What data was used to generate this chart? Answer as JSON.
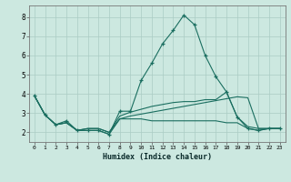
{
  "xlabel": "Humidex (Indice chaleur)",
  "background_color": "#cce8e0",
  "grid_color": "#aaccc4",
  "line_color": "#1a6e60",
  "x_ticks": [
    0,
    1,
    2,
    3,
    4,
    5,
    6,
    7,
    8,
    9,
    10,
    11,
    12,
    13,
    14,
    15,
    16,
    17,
    18,
    19,
    20,
    21,
    22,
    23
  ],
  "ylim": [
    1.5,
    8.6
  ],
  "xlim": [
    -0.5,
    23.5
  ],
  "yticks": [
    2,
    3,
    4,
    5,
    6,
    7,
    8
  ],
  "series": [
    {
      "x": [
        0,
        1,
        2,
        3,
        4,
        5,
        6,
        7,
        8,
        9,
        10,
        11,
        12,
        13,
        14,
        15,
        16,
        17,
        18,
        19,
        20,
        21,
        22,
        23
      ],
      "y": [
        3.9,
        2.9,
        2.4,
        2.6,
        2.1,
        2.1,
        2.1,
        1.9,
        3.1,
        3.1,
        4.7,
        5.6,
        6.6,
        7.3,
        8.1,
        7.6,
        6.0,
        4.9,
        4.1,
        2.8,
        2.2,
        2.1,
        2.2,
        2.2
      ],
      "marker": "+"
    },
    {
      "x": [
        0,
        1,
        2,
        3,
        4,
        5,
        6,
        7,
        8,
        9,
        10,
        11,
        12,
        13,
        14,
        15,
        16,
        17,
        18,
        19,
        20,
        21,
        22,
        23
      ],
      "y": [
        3.9,
        2.9,
        2.4,
        2.5,
        2.1,
        2.1,
        2.1,
        1.9,
        2.7,
        2.7,
        2.7,
        2.6,
        2.6,
        2.6,
        2.6,
        2.6,
        2.6,
        2.6,
        2.5,
        2.5,
        2.2,
        2.1,
        2.2,
        2.2
      ],
      "marker": null
    },
    {
      "x": [
        0,
        1,
        2,
        3,
        4,
        5,
        6,
        7,
        8,
        9,
        10,
        11,
        12,
        13,
        14,
        15,
        16,
        17,
        18,
        19,
        20,
        21,
        22,
        23
      ],
      "y": [
        3.9,
        2.9,
        2.4,
        2.5,
        2.1,
        2.2,
        2.2,
        2.0,
        2.7,
        2.85,
        2.95,
        3.05,
        3.15,
        3.25,
        3.35,
        3.45,
        3.55,
        3.65,
        3.75,
        3.85,
        3.8,
        2.2,
        2.2,
        2.2
      ],
      "marker": null
    },
    {
      "x": [
        0,
        1,
        2,
        3,
        4,
        5,
        6,
        7,
        8,
        9,
        10,
        11,
        12,
        13,
        14,
        15,
        16,
        17,
        18,
        19,
        20,
        21,
        22,
        23
      ],
      "y": [
        3.9,
        2.9,
        2.4,
        2.5,
        2.1,
        2.2,
        2.2,
        2.0,
        2.85,
        3.05,
        3.2,
        3.35,
        3.45,
        3.55,
        3.6,
        3.6,
        3.7,
        3.7,
        4.1,
        2.8,
        2.3,
        2.2,
        2.2,
        2.2
      ],
      "marker": null
    }
  ]
}
